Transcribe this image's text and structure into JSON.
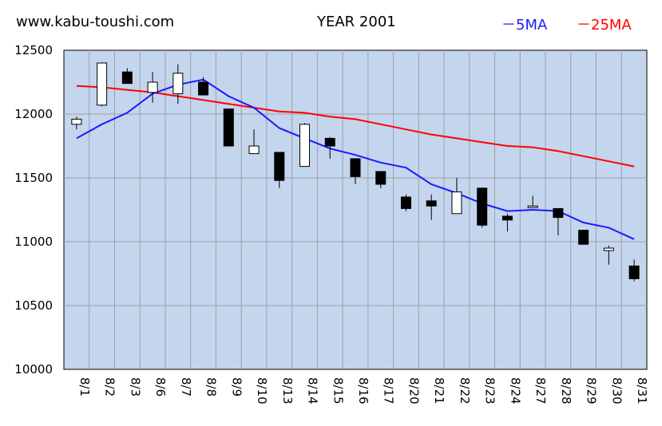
{
  "header": {
    "site": "www.kabu-toushi.com",
    "title": "YEAR 2001"
  },
  "legend": [
    {
      "label": "－5MA",
      "color": "#1a1aff"
    },
    {
      "label": "－25MA",
      "color": "#ff0000"
    }
  ],
  "chart_data": {
    "type": "candlestick",
    "ylim": [
      10000,
      12500
    ],
    "yticks": [
      "12500",
      "12000",
      "11500",
      "11000",
      "10500",
      "10000"
    ],
    "grid": true,
    "legend_position": "top-right",
    "colors": {
      "plot_bg": "#c4d5ee",
      "grid": "#a0a0a0",
      "up_candle": "#ffffff",
      "down_candle": "#000000",
      "ma5": "#1a1aff",
      "ma25": "#ff0000"
    },
    "categories": [
      "8/1",
      "8/2",
      "8/3",
      "8/6",
      "8/7",
      "8/8",
      "8/9",
      "8/10",
      "8/13",
      "8/14",
      "8/15",
      "8/16",
      "8/17",
      "8/20",
      "8/21",
      "8/22",
      "8/23",
      "8/24",
      "8/27",
      "8/28",
      "8/29",
      "8/30",
      "8/31"
    ],
    "candles": [
      {
        "open": 11920,
        "high": 11980,
        "low": 11880,
        "close": 11960
      },
      {
        "open": 12070,
        "high": 12400,
        "low": 12060,
        "close": 12400
      },
      {
        "open": 12330,
        "high": 12360,
        "low": 12240,
        "close": 12240
      },
      {
        "open": 12170,
        "high": 12330,
        "low": 12090,
        "close": 12250
      },
      {
        "open": 12160,
        "high": 12390,
        "low": 12080,
        "close": 12320
      },
      {
        "open": 12250,
        "high": 12290,
        "low": 12150,
        "close": 12150
      },
      {
        "open": 12040,
        "high": 12040,
        "low": 11750,
        "close": 11750
      },
      {
        "open": 11690,
        "high": 11880,
        "low": 11690,
        "close": 11750
      },
      {
        "open": 11700,
        "high": 11700,
        "low": 11420,
        "close": 11480
      },
      {
        "open": 11590,
        "high": 11930,
        "low": 11590,
        "close": 11920
      },
      {
        "open": 11810,
        "high": 11820,
        "low": 11650,
        "close": 11750
      },
      {
        "open": 11650,
        "high": 11650,
        "low": 11450,
        "close": 11510
      },
      {
        "open": 11550,
        "high": 11550,
        "low": 11420,
        "close": 11450
      },
      {
        "open": 11350,
        "high": 11370,
        "low": 11240,
        "close": 11260
      },
      {
        "open": 11320,
        "high": 11370,
        "low": 11170,
        "close": 11280
      },
      {
        "open": 11220,
        "high": 11500,
        "low": 11220,
        "close": 11390
      },
      {
        "open": 11420,
        "high": 11420,
        "low": 11110,
        "close": 11130
      },
      {
        "open": 11200,
        "high": 11220,
        "low": 11080,
        "close": 11170
      },
      {
        "open": 11270,
        "high": 11360,
        "low": 11270,
        "close": 11280
      },
      {
        "open": 11260,
        "high": 11260,
        "low": 11050,
        "close": 11190
      },
      {
        "open": 11090,
        "high": 11090,
        "low": 10980,
        "close": 10980
      },
      {
        "open": 10930,
        "high": 10970,
        "low": 10820,
        "close": 10950
      },
      {
        "open": 10810,
        "high": 10860,
        "low": 10690,
        "close": 10710
      }
    ],
    "series": [
      {
        "name": "5MA",
        "values": [
          11810,
          11920,
          12010,
          12160,
          12230,
          12270,
          12140,
          12050,
          11890,
          11810,
          11730,
          11680,
          11620,
          11580,
          11450,
          11380,
          11300,
          11240,
          11250,
          11240,
          11150,
          11110,
          11020
        ]
      },
      {
        "name": "25MA",
        "values": [
          12220,
          12210,
          12190,
          12170,
          12140,
          12110,
          12080,
          12050,
          12020,
          12010,
          11980,
          11960,
          11920,
          11880,
          11840,
          11810,
          11780,
          11750,
          11740,
          11710,
          11670,
          11630,
          11590
        ]
      }
    ]
  }
}
